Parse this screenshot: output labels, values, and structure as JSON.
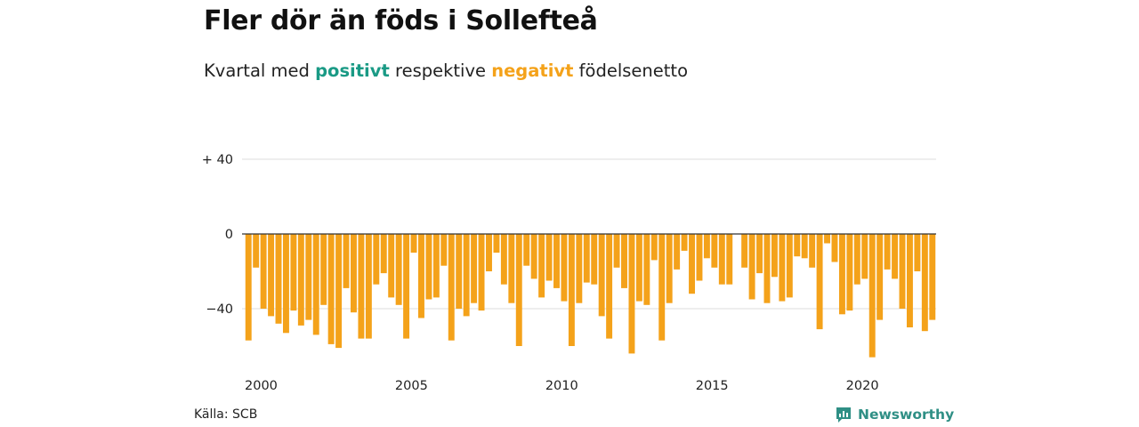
{
  "title": "Fler dör än föds i Sollefteå",
  "subtitle": {
    "prefix": "Kvartal med",
    "positive_word": "positivt",
    "middle": "respektive",
    "negative_word": "negativt",
    "suffix": "födelsenetto"
  },
  "colors": {
    "positive": "#1a9a85",
    "negative": "#f4a21a",
    "grid": "#dddddd",
    "zero_line": "#333333"
  },
  "source": "Källa: SCB",
  "brand": {
    "name": "Newsworthy",
    "icon": "newsworthy-logo-icon"
  },
  "chart_data": {
    "type": "bar",
    "x_start": "2000 Q1",
    "x_ticks": [
      "2000",
      "2005",
      "2010",
      "2015",
      "2020"
    ],
    "y_ticks": [
      {
        "value": 40,
        "label": "+ 40"
      },
      {
        "value": 0,
        "label": "0"
      },
      {
        "value": -40,
        "label": "−40"
      }
    ],
    "ylim": [
      -66,
      52
    ],
    "grid": true,
    "values": [
      -57,
      -18,
      -40,
      -44,
      -48,
      -53,
      -41,
      -49,
      -46,
      -54,
      -38,
      -59,
      -61,
      -29,
      -42,
      -56,
      -56,
      -27,
      -21,
      -34,
      -38,
      -56,
      -10,
      -45,
      -35,
      -34,
      -17,
      -57,
      -40,
      -44,
      -37,
      -41,
      -20,
      -10,
      -27,
      -37,
      -60,
      -17,
      -24,
      -34,
      -25,
      -29,
      -36,
      -60,
      -37,
      -26,
      -27,
      -44,
      -56,
      -18,
      -29,
      -64,
      -36,
      -38,
      -14,
      -57,
      -37,
      -19,
      -9,
      -32,
      -25,
      -13,
      -18,
      -27,
      -27,
      0,
      -18,
      -35,
      -21,
      -37,
      -23,
      -36,
      -34,
      -12,
      -13,
      -18,
      -51,
      -5,
      -15,
      -43,
      -41,
      -27,
      -24,
      -66,
      -46,
      -19,
      -24,
      -40,
      -50,
      -20,
      -52,
      -46
    ]
  }
}
